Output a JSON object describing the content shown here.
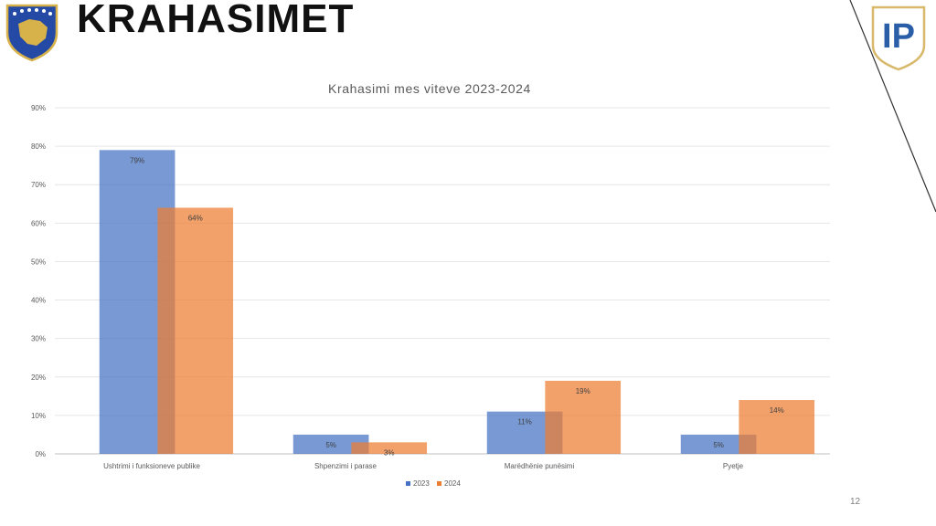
{
  "slide": {
    "title": "KRAHASIMET",
    "page_number": "12",
    "logo_text": "IP"
  },
  "chart_data": {
    "type": "bar",
    "title": "Krahasimi mes viteve 2023-2024",
    "xlabel": "",
    "ylabel": "",
    "categories": [
      "Ushtrimi i funksioneve publike",
      "Shpenzimi i parase",
      "Marëdhënie punësimi",
      "Pyetje"
    ],
    "series": [
      {
        "name": "2023",
        "values": [
          79,
          5,
          11,
          5
        ],
        "labels": [
          "79%",
          "5%",
          "11%",
          "5%"
        ],
        "color": "#4472c4"
      },
      {
        "name": "2024",
        "values": [
          64,
          3,
          19,
          14
        ],
        "labels": [
          "64%",
          "3%",
          "19%",
          "14%"
        ],
        "color": "#ed7d31"
      }
    ],
    "ylim": [
      0,
      90
    ],
    "yticks": [
      "0%",
      "10%",
      "20%",
      "30%",
      "40%",
      "50%",
      "60%",
      "70%",
      "80%",
      "90%"
    ],
    "grid": true,
    "legend_position": "bottom",
    "bar_overlap": true
  }
}
